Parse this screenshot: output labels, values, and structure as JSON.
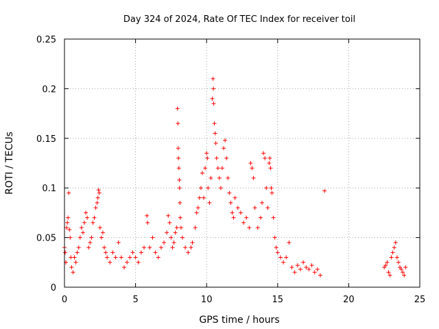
{
  "chart_data": {
    "type": "scatter",
    "title": "Day 324 of 2024, Rate Of TEC Index for receiver toil",
    "xlabel": "GPS time / hours",
    "ylabel": "ROTI / TECUs",
    "xlim": [
      0,
      25
    ],
    "ylim": [
      0,
      0.25
    ],
    "x_ticks": [
      0,
      5,
      10,
      15,
      20,
      25
    ],
    "y_ticks": [
      0,
      0.05,
      0.1,
      0.15,
      0.2,
      0.25
    ],
    "x_tick_labels": [
      "0",
      "5",
      "10",
      "15",
      "20",
      "25"
    ],
    "y_tick_labels": [
      "0",
      "0.05",
      "0.1",
      "0.15",
      "0.2",
      "0.25"
    ],
    "grid": true,
    "marker": "+",
    "marker_color": "#ff0000",
    "series": [
      {
        "name": "ROTI",
        "points": [
          [
            0.0,
            0.04
          ],
          [
            0.05,
            0.035
          ],
          [
            0.1,
            0.025
          ],
          [
            0.15,
            0.06
          ],
          [
            0.2,
            0.065
          ],
          [
            0.25,
            0.07
          ],
          [
            0.3,
            0.095
          ],
          [
            0.35,
            0.058
          ],
          [
            0.4,
            0.05
          ],
          [
            0.45,
            0.03
          ],
          [
            0.5,
            0.02
          ],
          [
            0.6,
            0.015
          ],
          [
            0.7,
            0.03
          ],
          [
            0.8,
            0.025
          ],
          [
            0.9,
            0.035
          ],
          [
            1.0,
            0.04
          ],
          [
            1.1,
            0.05
          ],
          [
            1.2,
            0.06
          ],
          [
            1.3,
            0.055
          ],
          [
            1.4,
            0.065
          ],
          [
            1.5,
            0.075
          ],
          [
            1.6,
            0.07
          ],
          [
            1.7,
            0.04
          ],
          [
            1.8,
            0.045
          ],
          [
            1.9,
            0.05
          ],
          [
            2.0,
            0.065
          ],
          [
            2.1,
            0.07
          ],
          [
            2.2,
            0.08
          ],
          [
            2.3,
            0.085
          ],
          [
            2.35,
            0.09
          ],
          [
            2.4,
            0.098
          ],
          [
            2.45,
            0.095
          ],
          [
            2.5,
            0.06
          ],
          [
            2.6,
            0.05
          ],
          [
            2.7,
            0.055
          ],
          [
            2.8,
            0.04
          ],
          [
            2.9,
            0.035
          ],
          [
            3.0,
            0.03
          ],
          [
            3.2,
            0.025
          ],
          [
            3.4,
            0.035
          ],
          [
            3.6,
            0.03
          ],
          [
            3.8,
            0.045
          ],
          [
            4.0,
            0.03
          ],
          [
            4.2,
            0.02
          ],
          [
            4.4,
            0.025
          ],
          [
            4.6,
            0.03
          ],
          [
            4.8,
            0.035
          ],
          [
            5.0,
            0.03
          ],
          [
            5.2,
            0.025
          ],
          [
            5.4,
            0.035
          ],
          [
            5.6,
            0.04
          ],
          [
            5.8,
            0.072
          ],
          [
            5.85,
            0.065
          ],
          [
            6.0,
            0.04
          ],
          [
            6.2,
            0.05
          ],
          [
            6.4,
            0.035
          ],
          [
            6.6,
            0.03
          ],
          [
            6.8,
            0.04
          ],
          [
            7.0,
            0.045
          ],
          [
            7.2,
            0.055
          ],
          [
            7.3,
            0.072
          ],
          [
            7.4,
            0.065
          ],
          [
            7.5,
            0.05
          ],
          [
            7.6,
            0.04
          ],
          [
            7.7,
            0.045
          ],
          [
            7.8,
            0.055
          ],
          [
            7.9,
            0.06
          ],
          [
            7.95,
            0.18
          ],
          [
            7.98,
            0.165
          ],
          [
            8.0,
            0.14
          ],
          [
            8.02,
            0.13
          ],
          [
            8.05,
            0.12
          ],
          [
            8.08,
            0.108
          ],
          [
            8.1,
            0.1
          ],
          [
            8.12,
            0.085
          ],
          [
            8.15,
            0.07
          ],
          [
            8.2,
            0.06
          ],
          [
            8.3,
            0.05
          ],
          [
            8.5,
            0.04
          ],
          [
            8.7,
            0.035
          ],
          [
            8.9,
            0.04
          ],
          [
            9.0,
            0.045
          ],
          [
            9.2,
            0.06
          ],
          [
            9.3,
            0.075
          ],
          [
            9.4,
            0.08
          ],
          [
            9.5,
            0.09
          ],
          [
            9.6,
            0.1
          ],
          [
            9.7,
            0.115
          ],
          [
            9.8,
            0.09
          ],
          [
            9.9,
            0.12
          ],
          [
            10.0,
            0.135
          ],
          [
            10.05,
            0.13
          ],
          [
            10.1,
            0.1
          ],
          [
            10.2,
            0.085
          ],
          [
            10.3,
            0.11
          ],
          [
            10.4,
            0.19
          ],
          [
            10.45,
            0.21
          ],
          [
            10.48,
            0.2
          ],
          [
            10.5,
            0.185
          ],
          [
            10.55,
            0.165
          ],
          [
            10.6,
            0.155
          ],
          [
            10.65,
            0.145
          ],
          [
            10.7,
            0.13
          ],
          [
            10.8,
            0.12
          ],
          [
            10.9,
            0.11
          ],
          [
            11.0,
            0.1
          ],
          [
            11.1,
            0.12
          ],
          [
            11.2,
            0.14
          ],
          [
            11.3,
            0.148
          ],
          [
            11.4,
            0.13
          ],
          [
            11.5,
            0.11
          ],
          [
            11.6,
            0.095
          ],
          [
            11.7,
            0.085
          ],
          [
            11.8,
            0.075
          ],
          [
            11.9,
            0.07
          ],
          [
            12.0,
            0.09
          ],
          [
            12.2,
            0.08
          ],
          [
            12.4,
            0.075
          ],
          [
            12.6,
            0.065
          ],
          [
            12.8,
            0.07
          ],
          [
            13.0,
            0.06
          ],
          [
            13.1,
            0.125
          ],
          [
            13.2,
            0.12
          ],
          [
            13.3,
            0.11
          ],
          [
            13.4,
            0.08
          ],
          [
            13.6,
            0.06
          ],
          [
            13.8,
            0.07
          ],
          [
            13.9,
            0.085
          ],
          [
            14.0,
            0.135
          ],
          [
            14.1,
            0.13
          ],
          [
            14.2,
            0.1
          ],
          [
            14.3,
            0.08
          ],
          [
            14.4,
            0.125
          ],
          [
            14.45,
            0.13
          ],
          [
            14.5,
            0.12
          ],
          [
            14.55,
            0.1
          ],
          [
            14.6,
            0.095
          ],
          [
            14.7,
            0.07
          ],
          [
            14.8,
            0.05
          ],
          [
            14.9,
            0.04
          ],
          [
            15.0,
            0.035
          ],
          [
            15.2,
            0.03
          ],
          [
            15.4,
            0.025
          ],
          [
            15.6,
            0.03
          ],
          [
            15.8,
            0.045
          ],
          [
            16.0,
            0.02
          ],
          [
            16.2,
            0.015
          ],
          [
            16.4,
            0.022
          ],
          [
            16.6,
            0.018
          ],
          [
            16.8,
            0.025
          ],
          [
            17.0,
            0.02
          ],
          [
            17.2,
            0.018
          ],
          [
            17.4,
            0.022
          ],
          [
            17.6,
            0.015
          ],
          [
            17.8,
            0.018
          ],
          [
            18.0,
            0.012
          ],
          [
            18.3,
            0.097
          ],
          [
            22.5,
            0.02
          ],
          [
            22.6,
            0.022
          ],
          [
            22.7,
            0.025
          ],
          [
            22.8,
            0.015
          ],
          [
            22.9,
            0.012
          ],
          [
            23.0,
            0.03
          ],
          [
            23.1,
            0.035
          ],
          [
            23.2,
            0.04
          ],
          [
            23.3,
            0.045
          ],
          [
            23.4,
            0.03
          ],
          [
            23.5,
            0.025
          ],
          [
            23.6,
            0.02
          ],
          [
            23.7,
            0.018
          ],
          [
            23.8,
            0.015
          ],
          [
            23.9,
            0.012
          ],
          [
            24.0,
            0.02
          ]
        ]
      }
    ]
  }
}
